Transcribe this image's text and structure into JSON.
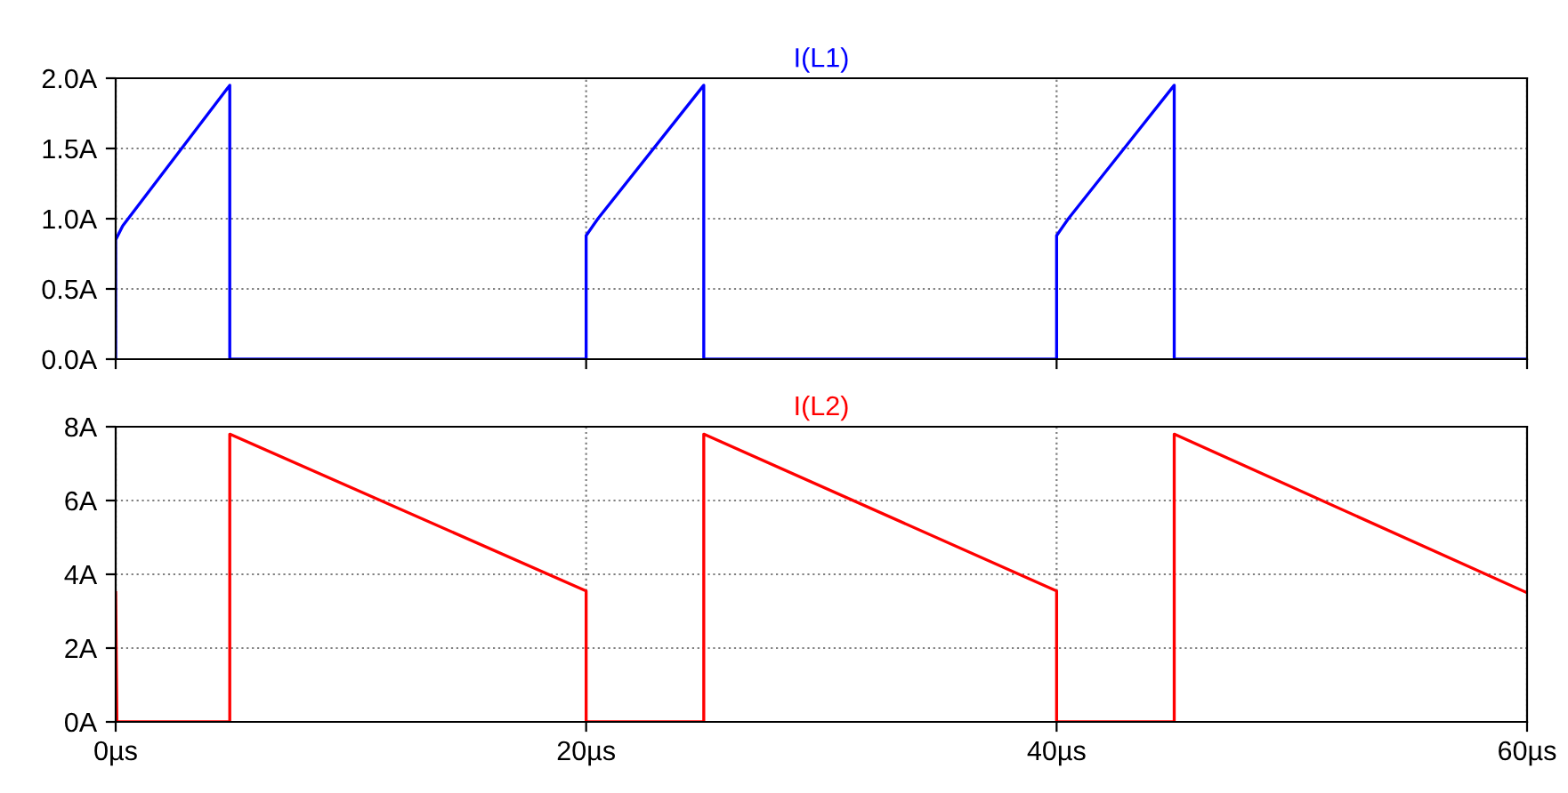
{
  "chart_data": [
    {
      "type": "line",
      "tick_labels": "y",
      "grid": true,
      "line_style": "solid",
      "marker": "none",
      "xlim": [
        0,
        60
      ],
      "xticks": [
        {
          "value": 0,
          "label": null
        },
        {
          "value": 20,
          "label": null
        },
        {
          "value": 40,
          "label": null
        },
        {
          "value": 60,
          "label": null
        }
      ],
      "ylim": [
        0,
        2.0
      ],
      "yticks": [
        {
          "value": 0,
          "label": "0.0A"
        },
        {
          "value": 0.5,
          "label": "0.5A"
        },
        {
          "value": 1.0,
          "label": "1.0A"
        },
        {
          "value": 1.5,
          "label": "1.5A"
        },
        {
          "value": 2.0,
          "label": "2.0A"
        }
      ],
      "series": [
        {
          "name": "I(L1)",
          "color": "#0000ff",
          "x": [
            0,
            0,
            0.3,
            4.85,
            4.85,
            20,
            20,
            20.5,
            25,
            25,
            40,
            40,
            40.5,
            45,
            45,
            60
          ],
          "values": [
            0,
            0.85,
            0.95,
            1.95,
            0,
            0,
            0.88,
            1.0,
            1.95,
            0,
            0,
            0.88,
            1.0,
            1.95,
            0,
            0
          ]
        }
      ]
    },
    {
      "type": "line",
      "grid": true,
      "line_style": "solid",
      "marker": "none",
      "xlim": [
        0,
        60
      ],
      "xticks": [
        {
          "value": 0,
          "label": "0µs"
        },
        {
          "value": 20,
          "label": "20µs"
        },
        {
          "value": 40,
          "label": "40µs"
        },
        {
          "value": 60,
          "label": "60µs"
        }
      ],
      "ylim": [
        0,
        8
      ],
      "yticks": [
        {
          "value": 0,
          "label": "0A"
        },
        {
          "value": 2,
          "label": "2A"
        },
        {
          "value": 4,
          "label": "4A"
        },
        {
          "value": 6,
          "label": "6A"
        },
        {
          "value": 8,
          "label": "8A"
        }
      ],
      "series": [
        {
          "name": "I(L2)",
          "color": "#ff0000",
          "x": [
            0,
            0.05,
            4.85,
            4.85,
            20,
            20,
            25,
            25,
            40,
            40,
            45,
            45,
            60
          ],
          "values": [
            3.5,
            0,
            0,
            7.8,
            3.55,
            0,
            0,
            7.8,
            3.55,
            0,
            0,
            7.8,
            3.5
          ]
        }
      ]
    }
  ]
}
